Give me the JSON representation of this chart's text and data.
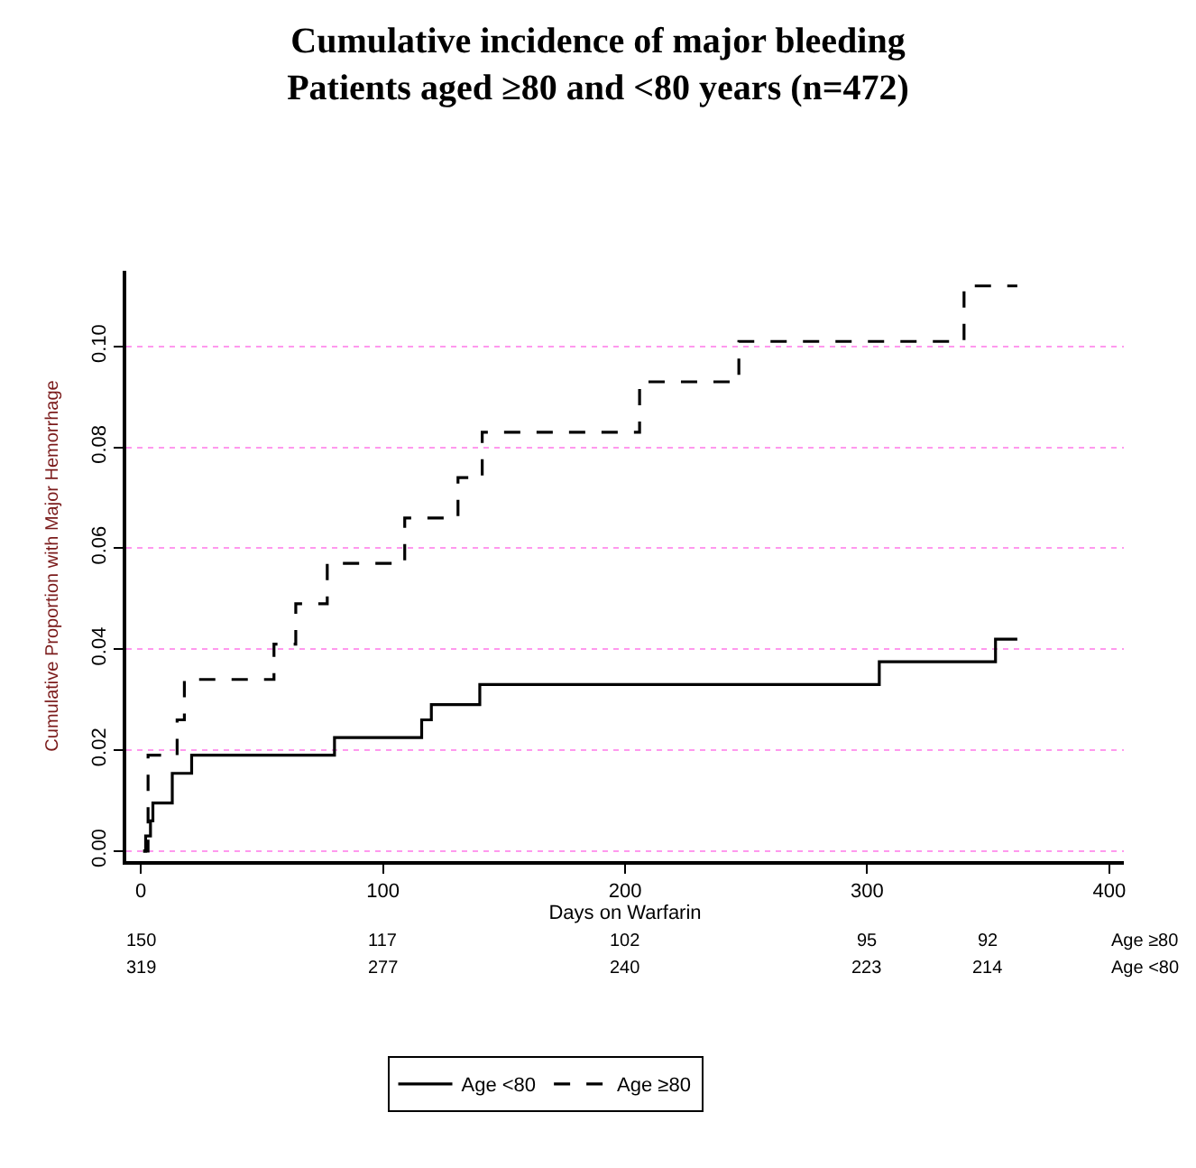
{
  "chart_data": {
    "type": "step",
    "title": "Cumulative incidence of major bleeding",
    "subtitle": "Patients aged ≥80 and <80 years (n=472)",
    "xlabel": "Days on Warfarin",
    "ylabel": "Cumulative Proportion with Major Hemorrhage",
    "series": [
      {
        "name": "Age <80",
        "color": "#000000",
        "line_style": "solid",
        "x": [
          1,
          2,
          4,
          5,
          13,
          21,
          80,
          116,
          120,
          140,
          305,
          353,
          362
        ],
        "values": [
          0,
          0.003,
          0.006,
          0.0095,
          0.0154,
          0.019,
          0.0225,
          0.026,
          0.029,
          0.033,
          0.0375,
          0.042,
          0.042
        ]
      },
      {
        "name": "Age ≥80",
        "color": "#000000",
        "line_style": "dashed",
        "x": [
          1,
          3,
          15,
          18,
          55,
          64,
          77,
          109,
          131,
          141,
          206,
          247,
          340,
          362
        ],
        "values": [
          0,
          0.019,
          0.026,
          0.034,
          0.041,
          0.049,
          0.057,
          0.066,
          0.074,
          0.083,
          0.093,
          0.101,
          0.112,
          0.112
        ]
      }
    ],
    "xlim": [
      -6,
      406
    ],
    "xticks": [
      0,
      100,
      200,
      300,
      400
    ],
    "ylim": [
      -0.002,
      0.115
    ],
    "yticks": [
      {
        "value": 0,
        "label": "0.00"
      },
      {
        "value": 0.02,
        "label": "0.02"
      },
      {
        "value": 0.04,
        "label": "0.04"
      },
      {
        "value": 0.06,
        "label": "0.06"
      },
      {
        "value": 0.08,
        "label": "0.08"
      },
      {
        "value": 0.1,
        "label": "0.10"
      }
    ],
    "grid": "y",
    "legend": "bottom",
    "marker": "none",
    "annotations": [
      "150",
      "117",
      "102",
      "95",
      "92",
      "Age ≥80",
      "319",
      "277",
      "240",
      "223",
      "214",
      "Age <80"
    ]
  }
}
